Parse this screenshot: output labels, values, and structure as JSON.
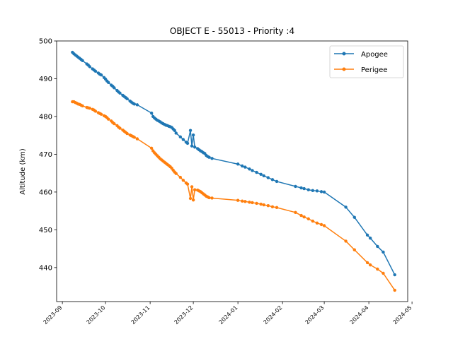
{
  "chart_data": {
    "type": "line",
    "title": "OBJECT E - 55013 - Priority :4",
    "xlabel": "",
    "ylabel": "Altitude (km)",
    "x_type": "date",
    "xlim": [
      "2023-08-28",
      "2024-04-28"
    ],
    "ylim": [
      431,
      500
    ],
    "x_ticks": [
      "2023-09",
      "2023-10",
      "2023-11",
      "2023-12",
      "2024-01",
      "2024-02",
      "2024-03",
      "2024-04",
      "2024-05"
    ],
    "x_tick_dates": [
      "2023-09-01",
      "2023-10-01",
      "2023-11-01",
      "2023-12-01",
      "2024-01-01",
      "2024-02-01",
      "2024-03-01",
      "2024-04-01",
      "2024-05-01"
    ],
    "y_ticks": [
      440,
      450,
      460,
      470,
      480,
      490,
      500
    ],
    "grid": false,
    "legend": "top-right",
    "series": [
      {
        "name": "Apogee",
        "color": "#1f77b4",
        "marker": "circle",
        "points": [
          [
            "2023-09-08",
            497.0
          ],
          [
            "2023-09-09",
            496.6
          ],
          [
            "2023-09-10",
            496.3
          ],
          [
            "2023-09-11",
            496.0
          ],
          [
            "2023-09-12",
            495.7
          ],
          [
            "2023-09-13",
            495.4
          ],
          [
            "2023-09-14",
            495.1
          ],
          [
            "2023-09-15",
            494.8
          ],
          [
            "2023-09-18",
            493.9
          ],
          [
            "2023-09-19",
            493.6
          ],
          [
            "2023-09-20",
            493.2
          ],
          [
            "2023-09-22",
            492.6
          ],
          [
            "2023-09-23",
            492.3
          ],
          [
            "2023-09-24",
            492.0
          ],
          [
            "2023-09-26",
            491.5
          ],
          [
            "2023-09-27",
            491.2
          ],
          [
            "2023-09-28",
            491.0
          ],
          [
            "2023-09-30",
            490.3
          ],
          [
            "2023-10-01",
            489.9
          ],
          [
            "2023-10-02",
            489.4
          ],
          [
            "2023-10-03",
            489.0
          ],
          [
            "2023-10-05",
            488.3
          ],
          [
            "2023-10-06",
            488.0
          ],
          [
            "2023-10-07",
            487.6
          ],
          [
            "2023-10-09",
            486.9
          ],
          [
            "2023-10-10",
            486.5
          ],
          [
            "2023-10-11",
            486.2
          ],
          [
            "2023-10-13",
            485.6
          ],
          [
            "2023-10-14",
            485.3
          ],
          [
            "2023-10-15",
            485.0
          ],
          [
            "2023-10-16",
            484.7
          ],
          [
            "2023-10-18",
            484.1
          ],
          [
            "2023-10-19",
            483.8
          ],
          [
            "2023-10-20",
            483.5
          ],
          [
            "2023-10-21",
            483.3
          ],
          [
            "2023-10-23",
            483.1
          ],
          [
            "2023-11-02",
            480.9
          ],
          [
            "2023-11-03",
            480.0
          ],
          [
            "2023-11-04",
            479.6
          ],
          [
            "2023-11-05",
            479.3
          ],
          [
            "2023-11-06",
            479.0
          ],
          [
            "2023-11-07",
            478.8
          ],
          [
            "2023-11-08",
            478.6
          ],
          [
            "2023-11-09",
            478.3
          ],
          [
            "2023-11-10",
            478.1
          ],
          [
            "2023-11-11",
            477.9
          ],
          [
            "2023-11-12",
            477.7
          ],
          [
            "2023-11-13",
            477.6
          ],
          [
            "2023-11-14",
            477.4
          ],
          [
            "2023-11-15",
            477.3
          ],
          [
            "2023-11-16",
            477.1
          ],
          [
            "2023-11-17",
            476.7
          ],
          [
            "2023-11-18",
            476.3
          ],
          [
            "2023-11-19",
            475.6
          ],
          [
            "2023-11-22",
            474.6
          ],
          [
            "2023-11-24",
            473.9
          ],
          [
            "2023-11-26",
            473.2
          ],
          [
            "2023-11-27",
            472.9
          ],
          [
            "2023-11-29",
            476.3
          ],
          [
            "2023-11-30",
            472.2
          ],
          [
            "2023-12-01",
            475.1
          ],
          [
            "2023-12-02",
            471.9
          ],
          [
            "2023-12-04",
            471.5
          ],
          [
            "2023-12-05",
            471.2
          ],
          [
            "2023-12-06",
            470.9
          ],
          [
            "2023-12-07",
            470.7
          ],
          [
            "2023-12-08",
            470.4
          ],
          [
            "2023-12-09",
            470.2
          ],
          [
            "2023-12-10",
            469.7
          ],
          [
            "2023-12-11",
            469.4
          ],
          [
            "2023-12-12",
            469.2
          ],
          [
            "2023-12-14",
            468.9
          ],
          [
            "2024-01-01",
            467.4
          ],
          [
            "2024-01-04",
            466.9
          ],
          [
            "2024-01-06",
            466.6
          ],
          [
            "2024-01-09",
            466.1
          ],
          [
            "2024-01-11",
            465.7
          ],
          [
            "2024-01-14",
            465.2
          ],
          [
            "2024-01-17",
            464.7
          ],
          [
            "2024-01-19",
            464.3
          ],
          [
            "2024-01-22",
            463.8
          ],
          [
            "2024-01-25",
            463.3
          ],
          [
            "2024-01-28",
            462.8
          ],
          [
            "2024-02-10",
            461.5
          ],
          [
            "2024-02-14",
            461.1
          ],
          [
            "2024-02-16",
            460.9
          ],
          [
            "2024-02-19",
            460.6
          ],
          [
            "2024-02-22",
            460.4
          ],
          [
            "2024-02-25",
            460.3
          ],
          [
            "2024-02-28",
            460.1
          ],
          [
            "2024-03-01",
            460.0
          ],
          [
            "2024-03-16",
            456.0
          ],
          [
            "2024-03-22",
            453.3
          ],
          [
            "2024-03-31",
            448.6
          ],
          [
            "2024-04-02",
            447.8
          ],
          [
            "2024-04-07",
            445.6
          ],
          [
            "2024-04-11",
            444.1
          ],
          [
            "2024-04-19",
            438.1
          ]
        ]
      },
      {
        "name": "Perigee",
        "color": "#ff7f0e",
        "marker": "circle",
        "points": [
          [
            "2023-09-08",
            483.9
          ],
          [
            "2023-09-09",
            483.9
          ],
          [
            "2023-09-10",
            483.7
          ],
          [
            "2023-09-11",
            483.5
          ],
          [
            "2023-09-12",
            483.3
          ],
          [
            "2023-09-13",
            483.2
          ],
          [
            "2023-09-14",
            483.0
          ],
          [
            "2023-09-15",
            482.8
          ],
          [
            "2023-09-18",
            482.4
          ],
          [
            "2023-09-19",
            482.3
          ],
          [
            "2023-09-20",
            482.2
          ],
          [
            "2023-09-22",
            481.9
          ],
          [
            "2023-09-23",
            481.7
          ],
          [
            "2023-09-24",
            481.4
          ],
          [
            "2023-09-26",
            481.0
          ],
          [
            "2023-09-27",
            480.8
          ],
          [
            "2023-09-28",
            480.6
          ],
          [
            "2023-09-30",
            480.2
          ],
          [
            "2023-10-01",
            480.0
          ],
          [
            "2023-10-02",
            479.7
          ],
          [
            "2023-10-03",
            479.3
          ],
          [
            "2023-10-05",
            478.8
          ],
          [
            "2023-10-06",
            478.4
          ],
          [
            "2023-10-07",
            478.1
          ],
          [
            "2023-10-09",
            477.6
          ],
          [
            "2023-10-10",
            477.2
          ],
          [
            "2023-10-11",
            476.9
          ],
          [
            "2023-10-13",
            476.4
          ],
          [
            "2023-10-14",
            476.1
          ],
          [
            "2023-10-15",
            475.8
          ],
          [
            "2023-10-16",
            475.5
          ],
          [
            "2023-10-18",
            475.1
          ],
          [
            "2023-10-19",
            474.9
          ],
          [
            "2023-10-20",
            474.7
          ],
          [
            "2023-10-21",
            474.5
          ],
          [
            "2023-10-23",
            474.1
          ],
          [
            "2023-11-02",
            471.6
          ],
          [
            "2023-11-03",
            470.9
          ],
          [
            "2023-11-04",
            470.4
          ],
          [
            "2023-11-05",
            470.0
          ],
          [
            "2023-11-06",
            469.6
          ],
          [
            "2023-11-07",
            469.2
          ],
          [
            "2023-11-08",
            468.8
          ],
          [
            "2023-11-09",
            468.5
          ],
          [
            "2023-11-10",
            468.2
          ],
          [
            "2023-11-11",
            467.9
          ],
          [
            "2023-11-12",
            467.6
          ],
          [
            "2023-11-13",
            467.3
          ],
          [
            "2023-11-14",
            467.0
          ],
          [
            "2023-11-15",
            466.7
          ],
          [
            "2023-11-16",
            466.3
          ],
          [
            "2023-11-17",
            465.8
          ],
          [
            "2023-11-18",
            465.3
          ],
          [
            "2023-11-19",
            464.9
          ],
          [
            "2023-11-22",
            463.9
          ],
          [
            "2023-11-24",
            463.1
          ],
          [
            "2023-11-26",
            462.4
          ],
          [
            "2023-11-27",
            462.1
          ],
          [
            "2023-11-29",
            458.3
          ],
          [
            "2023-11-30",
            461.4
          ],
          [
            "2023-12-01",
            457.9
          ],
          [
            "2023-12-02",
            460.6
          ],
          [
            "2023-12-04",
            460.5
          ],
          [
            "2023-12-05",
            460.3
          ],
          [
            "2023-12-06",
            460.1
          ],
          [
            "2023-12-07",
            459.8
          ],
          [
            "2023-12-08",
            459.5
          ],
          [
            "2023-12-09",
            459.2
          ],
          [
            "2023-12-10",
            458.9
          ],
          [
            "2023-12-11",
            458.7
          ],
          [
            "2023-12-12",
            458.5
          ],
          [
            "2023-12-14",
            458.4
          ],
          [
            "2024-01-01",
            457.8
          ],
          [
            "2024-01-04",
            457.6
          ],
          [
            "2024-01-06",
            457.5
          ],
          [
            "2024-01-09",
            457.3
          ],
          [
            "2024-01-11",
            457.2
          ],
          [
            "2024-01-14",
            457.0
          ],
          [
            "2024-01-17",
            456.8
          ],
          [
            "2024-01-19",
            456.6
          ],
          [
            "2024-01-22",
            456.4
          ],
          [
            "2024-01-25",
            456.1
          ],
          [
            "2024-01-28",
            455.9
          ],
          [
            "2024-02-10",
            454.6
          ],
          [
            "2024-02-14",
            453.8
          ],
          [
            "2024-02-16",
            453.4
          ],
          [
            "2024-02-19",
            452.9
          ],
          [
            "2024-02-22",
            452.3
          ],
          [
            "2024-02-25",
            451.8
          ],
          [
            "2024-02-28",
            451.4
          ],
          [
            "2024-03-01",
            451.1
          ],
          [
            "2024-03-16",
            447.0
          ],
          [
            "2024-03-22",
            444.7
          ],
          [
            "2024-03-31",
            441.3
          ],
          [
            "2024-04-02",
            440.7
          ],
          [
            "2024-04-07",
            439.6
          ],
          [
            "2024-04-11",
            438.5
          ],
          [
            "2024-04-19",
            434.0
          ]
        ]
      }
    ]
  }
}
